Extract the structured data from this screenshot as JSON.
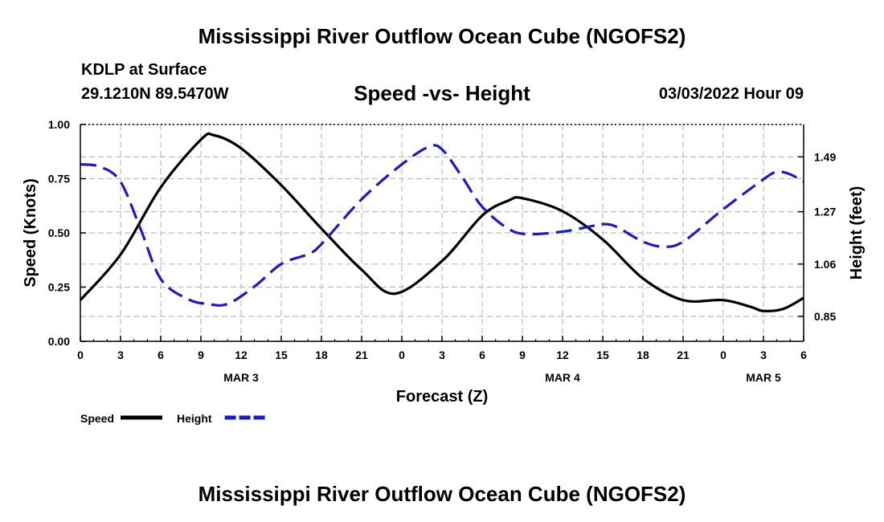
{
  "header": {
    "title": "Mississippi River Outflow Ocean Cube (NGOFS2)",
    "station": "KDLP at Surface",
    "coords": "29.1210N  89.5470W",
    "subtitle": "Speed -vs- Height",
    "datetime": "03/03/2022 Hour 09"
  },
  "footer": {
    "title": "Mississippi River Outflow Ocean Cube (NGOFS2)"
  },
  "chart_data": {
    "type": "line",
    "title": "Speed -vs- Height",
    "xlabel": "Forecast (Z)",
    "ylabel": "Speed (Knots)",
    "y2label": "Height (feet)",
    "x_range_hours": [
      0,
      54
    ],
    "ylim": [
      0,
      1
    ],
    "y2lim": [
      0.75,
      1.62
    ],
    "x_ticks": [
      {
        "hour": 0,
        "label": "0"
      },
      {
        "hour": 3,
        "label": "3"
      },
      {
        "hour": 6,
        "label": "6"
      },
      {
        "hour": 9,
        "label": "9"
      },
      {
        "hour": 12,
        "label": "12"
      },
      {
        "hour": 15,
        "label": "15"
      },
      {
        "hour": 18,
        "label": "18"
      },
      {
        "hour": 21,
        "label": "21"
      },
      {
        "hour": 24,
        "label": "0"
      },
      {
        "hour": 27,
        "label": "3"
      },
      {
        "hour": 30,
        "label": "6"
      },
      {
        "hour": 33,
        "label": "9"
      },
      {
        "hour": 36,
        "label": "12"
      },
      {
        "hour": 39,
        "label": "15"
      },
      {
        "hour": 42,
        "label": "18"
      },
      {
        "hour": 45,
        "label": "21"
      },
      {
        "hour": 48,
        "label": "0"
      },
      {
        "hour": 51,
        "label": "3"
      },
      {
        "hour": 54,
        "label": "6"
      }
    ],
    "date_labels": [
      {
        "hour": 12,
        "label": "MAR 3"
      },
      {
        "hour": 36,
        "label": "MAR 4"
      },
      {
        "hour": 51,
        "label": "MAR 5"
      }
    ],
    "y_ticks": [
      {
        "value": 0.0,
        "label": "0.00"
      },
      {
        "value": 0.25,
        "label": "0.25"
      },
      {
        "value": 0.5,
        "label": "0.50"
      },
      {
        "value": 0.75,
        "label": "0.75"
      },
      {
        "value": 1.0,
        "label": "1.00"
      }
    ],
    "y2_ticks": [
      {
        "value": 0.85,
        "label": "0.85"
      },
      {
        "value": 1.06,
        "label": "1.06"
      },
      {
        "value": 1.27,
        "label": "1.27"
      },
      {
        "value": 1.49,
        "label": "1.49"
      }
    ],
    "series": [
      {
        "name": "Speed",
        "axis": "left",
        "color": "#000000",
        "dash": "solid",
        "points": [
          [
            0,
            0.19
          ],
          [
            3,
            0.4
          ],
          [
            6,
            0.71
          ],
          [
            9,
            0.93
          ],
          [
            10,
            0.95
          ],
          [
            12,
            0.89
          ],
          [
            15,
            0.72
          ],
          [
            18,
            0.52
          ],
          [
            21,
            0.33
          ],
          [
            23.5,
            0.22
          ],
          [
            27,
            0.37
          ],
          [
            30,
            0.58
          ],
          [
            32,
            0.65
          ],
          [
            33,
            0.66
          ],
          [
            36,
            0.6
          ],
          [
            39,
            0.47
          ],
          [
            42,
            0.29
          ],
          [
            45,
            0.19
          ],
          [
            48,
            0.19
          ],
          [
            50,
            0.16
          ],
          [
            51,
            0.14
          ],
          [
            52.5,
            0.15
          ],
          [
            54,
            0.2
          ]
        ]
      },
      {
        "name": "Height",
        "axis": "right",
        "color": "#1a1acc",
        "dash": "dashed",
        "points": [
          [
            0,
            1.46
          ],
          [
            1.5,
            1.45
          ],
          [
            3,
            1.39
          ],
          [
            4.5,
            1.2
          ],
          [
            6,
            1.0
          ],
          [
            8,
            0.92
          ],
          [
            9.5,
            0.9
          ],
          [
            11,
            0.9
          ],
          [
            13,
            0.97
          ],
          [
            15,
            1.06
          ],
          [
            17,
            1.1
          ],
          [
            18,
            1.14
          ],
          [
            21,
            1.32
          ],
          [
            24,
            1.46
          ],
          [
            26,
            1.53
          ],
          [
            27,
            1.52
          ],
          [
            28.5,
            1.41
          ],
          [
            30,
            1.29
          ],
          [
            32,
            1.2
          ],
          [
            33.5,
            1.18
          ],
          [
            36,
            1.19
          ],
          [
            38,
            1.21
          ],
          [
            39,
            1.22
          ],
          [
            40,
            1.21
          ],
          [
            42,
            1.15
          ],
          [
            43.5,
            1.13
          ],
          [
            45,
            1.15
          ],
          [
            48,
            1.28
          ],
          [
            51,
            1.4
          ],
          [
            52,
            1.43
          ],
          [
            53,
            1.42
          ],
          [
            54,
            1.39
          ]
        ]
      }
    ],
    "legend": [
      {
        "name": "Speed",
        "color": "#000000",
        "dash": "solid"
      },
      {
        "name": "Height",
        "color": "#1a1acc",
        "dash": "dashed"
      }
    ],
    "legend_position": "bottom-left",
    "grid": true
  }
}
